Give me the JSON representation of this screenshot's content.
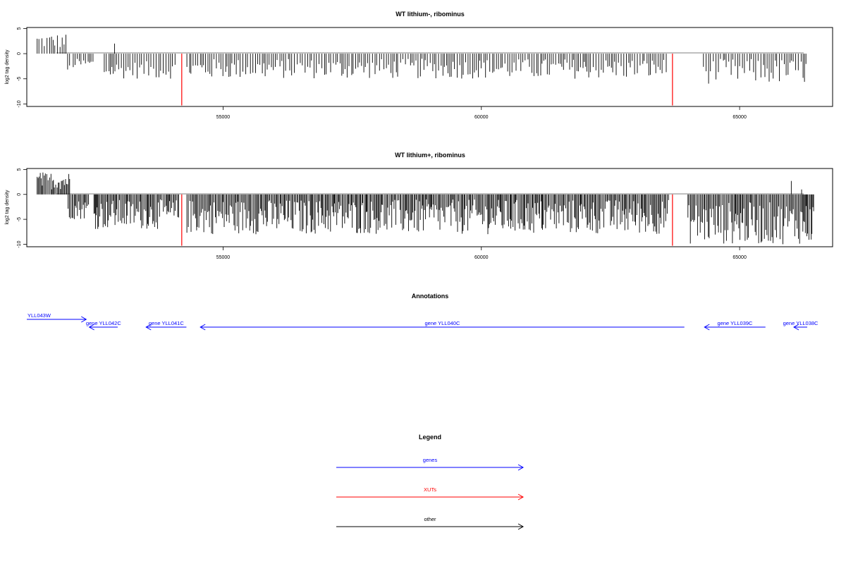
{
  "chart_data": [
    {
      "type": "bar",
      "title": "WT lithium-, ribominus",
      "xlabel": "",
      "ylabel": "log2 tag density",
      "xlim": [
        51200,
        66800
      ],
      "ylim": [
        -10.5,
        5.2
      ],
      "x_ticks": [
        55000,
        60000,
        65000
      ],
      "x_tick_labels": [
        "55000",
        "60000",
        "65000"
      ],
      "y_ticks": [
        5,
        0,
        -5,
        -10
      ],
      "y_tick_labels": [
        "5",
        "0",
        "-5",
        "-10"
      ],
      "grid": false,
      "series": [
        {
          "segments": [
            {
              "x_start": 51400,
              "x_end": 51970,
              "min": 1,
              "max": 4
            },
            {
              "x_start": 51990,
              "x_end": 52030,
              "min": -4,
              "max": -2
            },
            {
              "x_start": 52100,
              "x_end": 52500,
              "min": -3,
              "max": -1
            },
            {
              "x_start": 52700,
              "x_end": 54100,
              "min": -5,
              "max": -1.5
            },
            {
              "x_start": 54300,
              "x_end": 63600,
              "min": -5,
              "max": -1
            },
            {
              "x_start": 64300,
              "x_end": 66300,
              "min": -6,
              "max": -1
            }
          ],
          "spikes": [
            {
              "x": 52900,
              "value": 2
            }
          ]
        }
      ],
      "markers": [
        {
          "x": 54200,
          "value": -10.3,
          "color": "#ff0000"
        },
        {
          "x": 63700,
          "value": -10.3,
          "color": "#ff0000"
        }
      ]
    },
    {
      "type": "bar",
      "title": "WT lithium+, ribominus",
      "xlabel": "",
      "ylabel": "log2 tag density",
      "xlim": [
        51200,
        66800
      ],
      "ylim": [
        -10.5,
        5.2
      ],
      "x_ticks": [
        55000,
        60000,
        65000
      ],
      "x_tick_labels": [
        "55000",
        "60000",
        "65000"
      ],
      "y_ticks": [
        5,
        0,
        -5,
        -10
      ],
      "y_tick_labels": [
        "5",
        "0",
        "-5",
        "-10"
      ],
      "grid": false,
      "series": [
        {
          "segments": [
            {
              "x_start": 51400,
              "x_end": 52050,
              "min": 1,
              "max": 4.5
            },
            {
              "x_start": 52000,
              "x_end": 52400,
              "min": -5,
              "max": -1
            },
            {
              "x_start": 52500,
              "x_end": 54150,
              "min": -7,
              "max": -1
            },
            {
              "x_start": 54300,
              "x_end": 63650,
              "min": -8,
              "max": -1
            },
            {
              "x_start": 64000,
              "x_end": 66450,
              "min": -10,
              "max": -1.5
            }
          ],
          "spikes": [
            {
              "x": 66000,
              "value": 2.7
            },
            {
              "x": 66200,
              "value": 1
            }
          ]
        }
      ],
      "markers": [
        {
          "x": 54200,
          "value": -10.3,
          "color": "#ff0000"
        },
        {
          "x": 63700,
          "value": -10.3,
          "color": "#ff0000"
        }
      ]
    }
  ],
  "annotations": {
    "title": "Annotations",
    "genes": [
      {
        "label": "YLL043W",
        "start": 51200,
        "end": 52350,
        "direction": "right",
        "color": "#0000ff"
      },
      {
        "label": "gene YLL042C",
        "start": 52410,
        "end": 52960,
        "direction": "left",
        "color": "#0000ff"
      },
      {
        "label": "gene YLL041C",
        "start": 53510,
        "end": 54290,
        "direction": "left",
        "color": "#0000ff"
      },
      {
        "label": "gene YLL040C",
        "start": 54560,
        "end": 63930,
        "direction": "left",
        "color": "#0000ff"
      },
      {
        "label": "gene YLL039C",
        "start": 64320,
        "end": 65500,
        "direction": "left",
        "color": "#0000ff"
      },
      {
        "label": "gene YLL038C",
        "start": 66050,
        "end": 66800,
        "direction": "left",
        "color": "#0000ff"
      }
    ]
  },
  "legend": {
    "title": "Legend",
    "items": [
      {
        "label": "genes",
        "color": "#0000ff"
      },
      {
        "label": "XUTs",
        "color": "#ff0000"
      },
      {
        "label": "other",
        "color": "#000000"
      }
    ]
  }
}
